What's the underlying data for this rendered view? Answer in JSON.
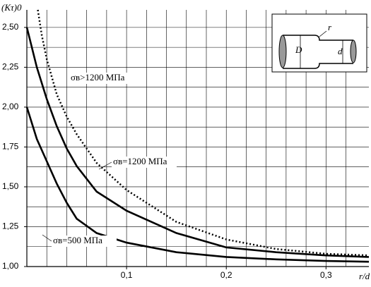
{
  "chart_data": {
    "type": "line",
    "y_label": "(Kτ)0",
    "x_label": "r/d",
    "xlim": [
      0,
      0.343
    ],
    "ylim": [
      1.0,
      2.61
    ],
    "xticks": [
      {
        "value": 0.1,
        "label": "0,1"
      },
      {
        "value": 0.2,
        "label": "0,2"
      },
      {
        "value": 0.3,
        "label": "0,3"
      }
    ],
    "yticks": [
      {
        "value": 1.0,
        "label": "1,00"
      },
      {
        "value": 1.25,
        "label": "1,25"
      },
      {
        "value": 1.5,
        "label": "1,50"
      },
      {
        "value": 1.75,
        "label": "1,75"
      },
      {
        "value": 2.0,
        "label": "2,00"
      },
      {
        "value": 2.25,
        "label": "2,25"
      },
      {
        "value": 2.5,
        "label": "2,50"
      }
    ],
    "xgrid": [
      0.02,
      0.04,
      0.06,
      0.08,
      0.1,
      0.12,
      0.14,
      0.16,
      0.18,
      0.2,
      0.22,
      0.24,
      0.26,
      0.28,
      0.3,
      0.32
    ],
    "ygrid": [
      1.125,
      1.25,
      1.375,
      1.5,
      1.625,
      1.75,
      1.875,
      2.0,
      2.125,
      2.25,
      2.375,
      2.5
    ],
    "series": [
      {
        "name": "σв>1200 МПа",
        "color": "#000",
        "style": "dotted",
        "x": [
          0.011,
          0.015,
          0.02,
          0.03,
          0.04,
          0.05,
          0.07,
          0.1,
          0.15,
          0.2,
          0.25,
          0.3,
          0.343
        ],
        "values": [
          2.61,
          2.45,
          2.3,
          2.08,
          1.94,
          1.83,
          1.65,
          1.48,
          1.28,
          1.17,
          1.11,
          1.08,
          1.07
        ]
      },
      {
        "name": "σв=1200 МПа",
        "color": "#000",
        "style": "solid",
        "x": [
          0,
          0.01,
          0.02,
          0.03,
          0.04,
          0.05,
          0.07,
          0.1,
          0.15,
          0.2,
          0.25,
          0.3,
          0.343
        ],
        "values": [
          2.5,
          2.25,
          2.05,
          1.88,
          1.74,
          1.63,
          1.47,
          1.35,
          1.21,
          1.12,
          1.09,
          1.07,
          1.06
        ]
      },
      {
        "name": "σв=500 МПа",
        "color": "#000",
        "style": "solid",
        "x": [
          0,
          0.01,
          0.02,
          0.03,
          0.04,
          0.05,
          0.07,
          0.1,
          0.15,
          0.2,
          0.25,
          0.3,
          0.343
        ],
        "values": [
          2.0,
          1.8,
          1.66,
          1.52,
          1.4,
          1.3,
          1.21,
          1.15,
          1.09,
          1.06,
          1.045,
          1.035,
          1.03
        ]
      }
    ]
  },
  "inset": {
    "labels": [
      "D",
      "d",
      "r"
    ]
  }
}
